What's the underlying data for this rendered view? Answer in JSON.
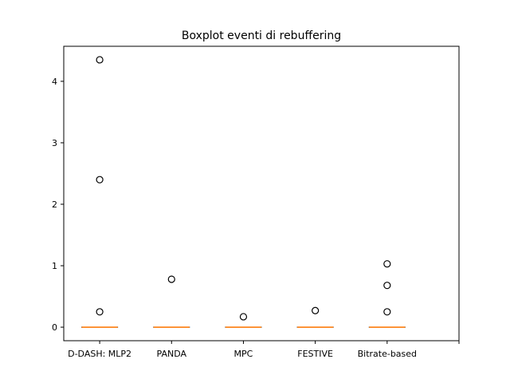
{
  "chart_data": {
    "type": "boxplot",
    "title": "Boxplot eventi di rebuffering",
    "xlabel": "",
    "ylabel": "",
    "categories": [
      "D-DASH: MLP2",
      "PANDA",
      "MPC",
      "FESTIVE",
      "Bitrate-based"
    ],
    "x_positions": [
      1,
      2,
      3,
      4,
      5
    ],
    "xlim": [
      0.5,
      6.0
    ],
    "ylim": [
      -0.22,
      4.57
    ],
    "yticks": [
      0,
      1,
      2,
      3,
      4
    ],
    "boxes": [
      {
        "category": "D-DASH: MLP2",
        "q1": 0,
        "median": 0,
        "q3": 0,
        "whisker_low": 0,
        "whisker_high": 0,
        "outliers": [
          4.35,
          2.4,
          0.25
        ]
      },
      {
        "category": "PANDA",
        "q1": 0,
        "median": 0,
        "q3": 0,
        "whisker_low": 0,
        "whisker_high": 0,
        "outliers": [
          0.78
        ]
      },
      {
        "category": "MPC",
        "q1": 0,
        "median": 0,
        "q3": 0,
        "whisker_low": 0,
        "whisker_high": 0,
        "outliers": [
          0.17
        ]
      },
      {
        "category": "FESTIVE",
        "q1": 0,
        "median": 0,
        "q3": 0,
        "whisker_low": 0,
        "whisker_high": 0,
        "outliers": [
          0.27
        ]
      },
      {
        "category": "Bitrate-based",
        "q1": 0,
        "median": 0,
        "q3": 0,
        "whisker_low": 0,
        "whisker_high": 0,
        "outliers": [
          1.03,
          0.68,
          0.25
        ]
      }
    ],
    "grid": false,
    "colors": {
      "median": "#ff7f0e",
      "box": "#000000",
      "outlier_edge": "#000000"
    }
  }
}
